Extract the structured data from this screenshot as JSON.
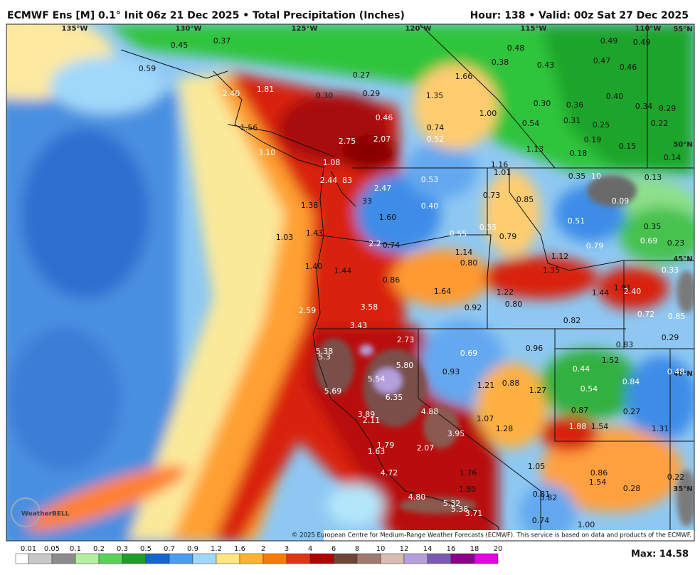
{
  "header": {
    "title": "ECMWF Ens [M] 0.1° Init 06z 21 Dec 2025 • Total Precipitation (Inches)",
    "valid": "Hour: 138 • Valid: 00z Sat 27 Dec 2025"
  },
  "map": {
    "graticule": [
      "135°W",
      "130°W",
      "125°W",
      "120°W",
      "115°W",
      "110°W",
      "55°N",
      "50°N",
      "45°N",
      "40°N",
      "35°N"
    ],
    "labels": [
      "0.45",
      "0.37",
      "0.59",
      "2.40",
      "1.81",
      "0.30",
      "0.27",
      "0.29",
      "1.66",
      "0.48",
      "0.38",
      "0.43",
      "0.49",
      "0.49",
      "0.47",
      "0.46",
      "1.35",
      "0.40",
      "0.30",
      "0.36",
      "0.34",
      "0.29",
      "1.00",
      "0.46",
      "0.54",
      "0.31",
      "0.25",
      "0.22",
      "1.56",
      "0.74",
      "2.75",
      "2.07",
      "0.52",
      "0.19",
      "0.15",
      "3.10",
      "1.13",
      "0.18",
      "0.14",
      "1.08",
      "1.16",
      "1.01",
      "0.35",
      "10",
      "0.13",
      "2.44",
      "83",
      "0.53",
      "2.47",
      "0.73",
      "0.85",
      "0.09",
      "1.38",
      "33",
      "0.40",
      "1.60",
      "0.51",
      "0.35",
      "1.03",
      "1.43",
      "0.55",
      "0.55",
      "0.79",
      "0.69",
      "0.23",
      "2.2",
      "0.74",
      "0.79",
      "1.14",
      "1.12",
      "0.80",
      "1.40",
      "1.44",
      "1.35",
      "0.33",
      "0.86",
      "1.91",
      "2.40",
      "1.64",
      "1.22",
      "1.44",
      "0.80",
      "0.92",
      "3.58",
      "2.59",
      "0.72",
      "0.85",
      "0.82",
      "3.43",
      "2.73",
      "0.29",
      "0.83",
      "0.96",
      "0.69",
      "5.38",
      "5.3",
      "1.52",
      "5.80",
      "0.44",
      "0.48",
      "0.93",
      "5.54",
      "0.84",
      "1.21",
      "0.88",
      "1.27",
      "0.54",
      "5.69",
      "6.35",
      "0.87",
      "0.27",
      "4.88",
      "3.89",
      "2.11",
      "1.07",
      "1.88",
      "1.54",
      "1.31",
      "1.28",
      "3.95",
      "1.79",
      "2.07",
      "1.63",
      "1.05",
      "1.76",
      "4.72",
      "0.86",
      "0.22",
      "1.54",
      "1.80",
      "0.28",
      "0.81",
      "0.82",
      "4.80",
      "5.32",
      "5.38",
      "3.71",
      "0.74",
      "1.00"
    ],
    "logo": "WeatherBELL",
    "copyright": "© 2025 European Centre for Medium-Range Weather Forecasts (ECMWF). This service is based on data and products of the ECMWF."
  },
  "legend": {
    "ticks": [
      "0.01",
      "0.05",
      "0.1",
      "0.2",
      "0.3",
      "0.5",
      "0.7",
      "0.9",
      "1.2",
      "1.6",
      "2",
      "3",
      "4",
      "6",
      "8",
      "10",
      "12",
      "14",
      "16",
      "18",
      "20"
    ],
    "colors": [
      "#ffffff",
      "#c8c8c8",
      "#8c8c8c",
      "#b4f0a0",
      "#5ad25a",
      "#1e9e28",
      "#1464d2",
      "#4a9cf0",
      "#a0d8fa",
      "#ffe680",
      "#ffb428",
      "#ff7800",
      "#e63214",
      "#b40000",
      "#6e4438",
      "#a07a6e",
      "#d8bcb4",
      "#b4a0dc",
      "#7c5ab4",
      "#8c008c",
      "#e600e6"
    ],
    "max": "Max: 14.58"
  }
}
